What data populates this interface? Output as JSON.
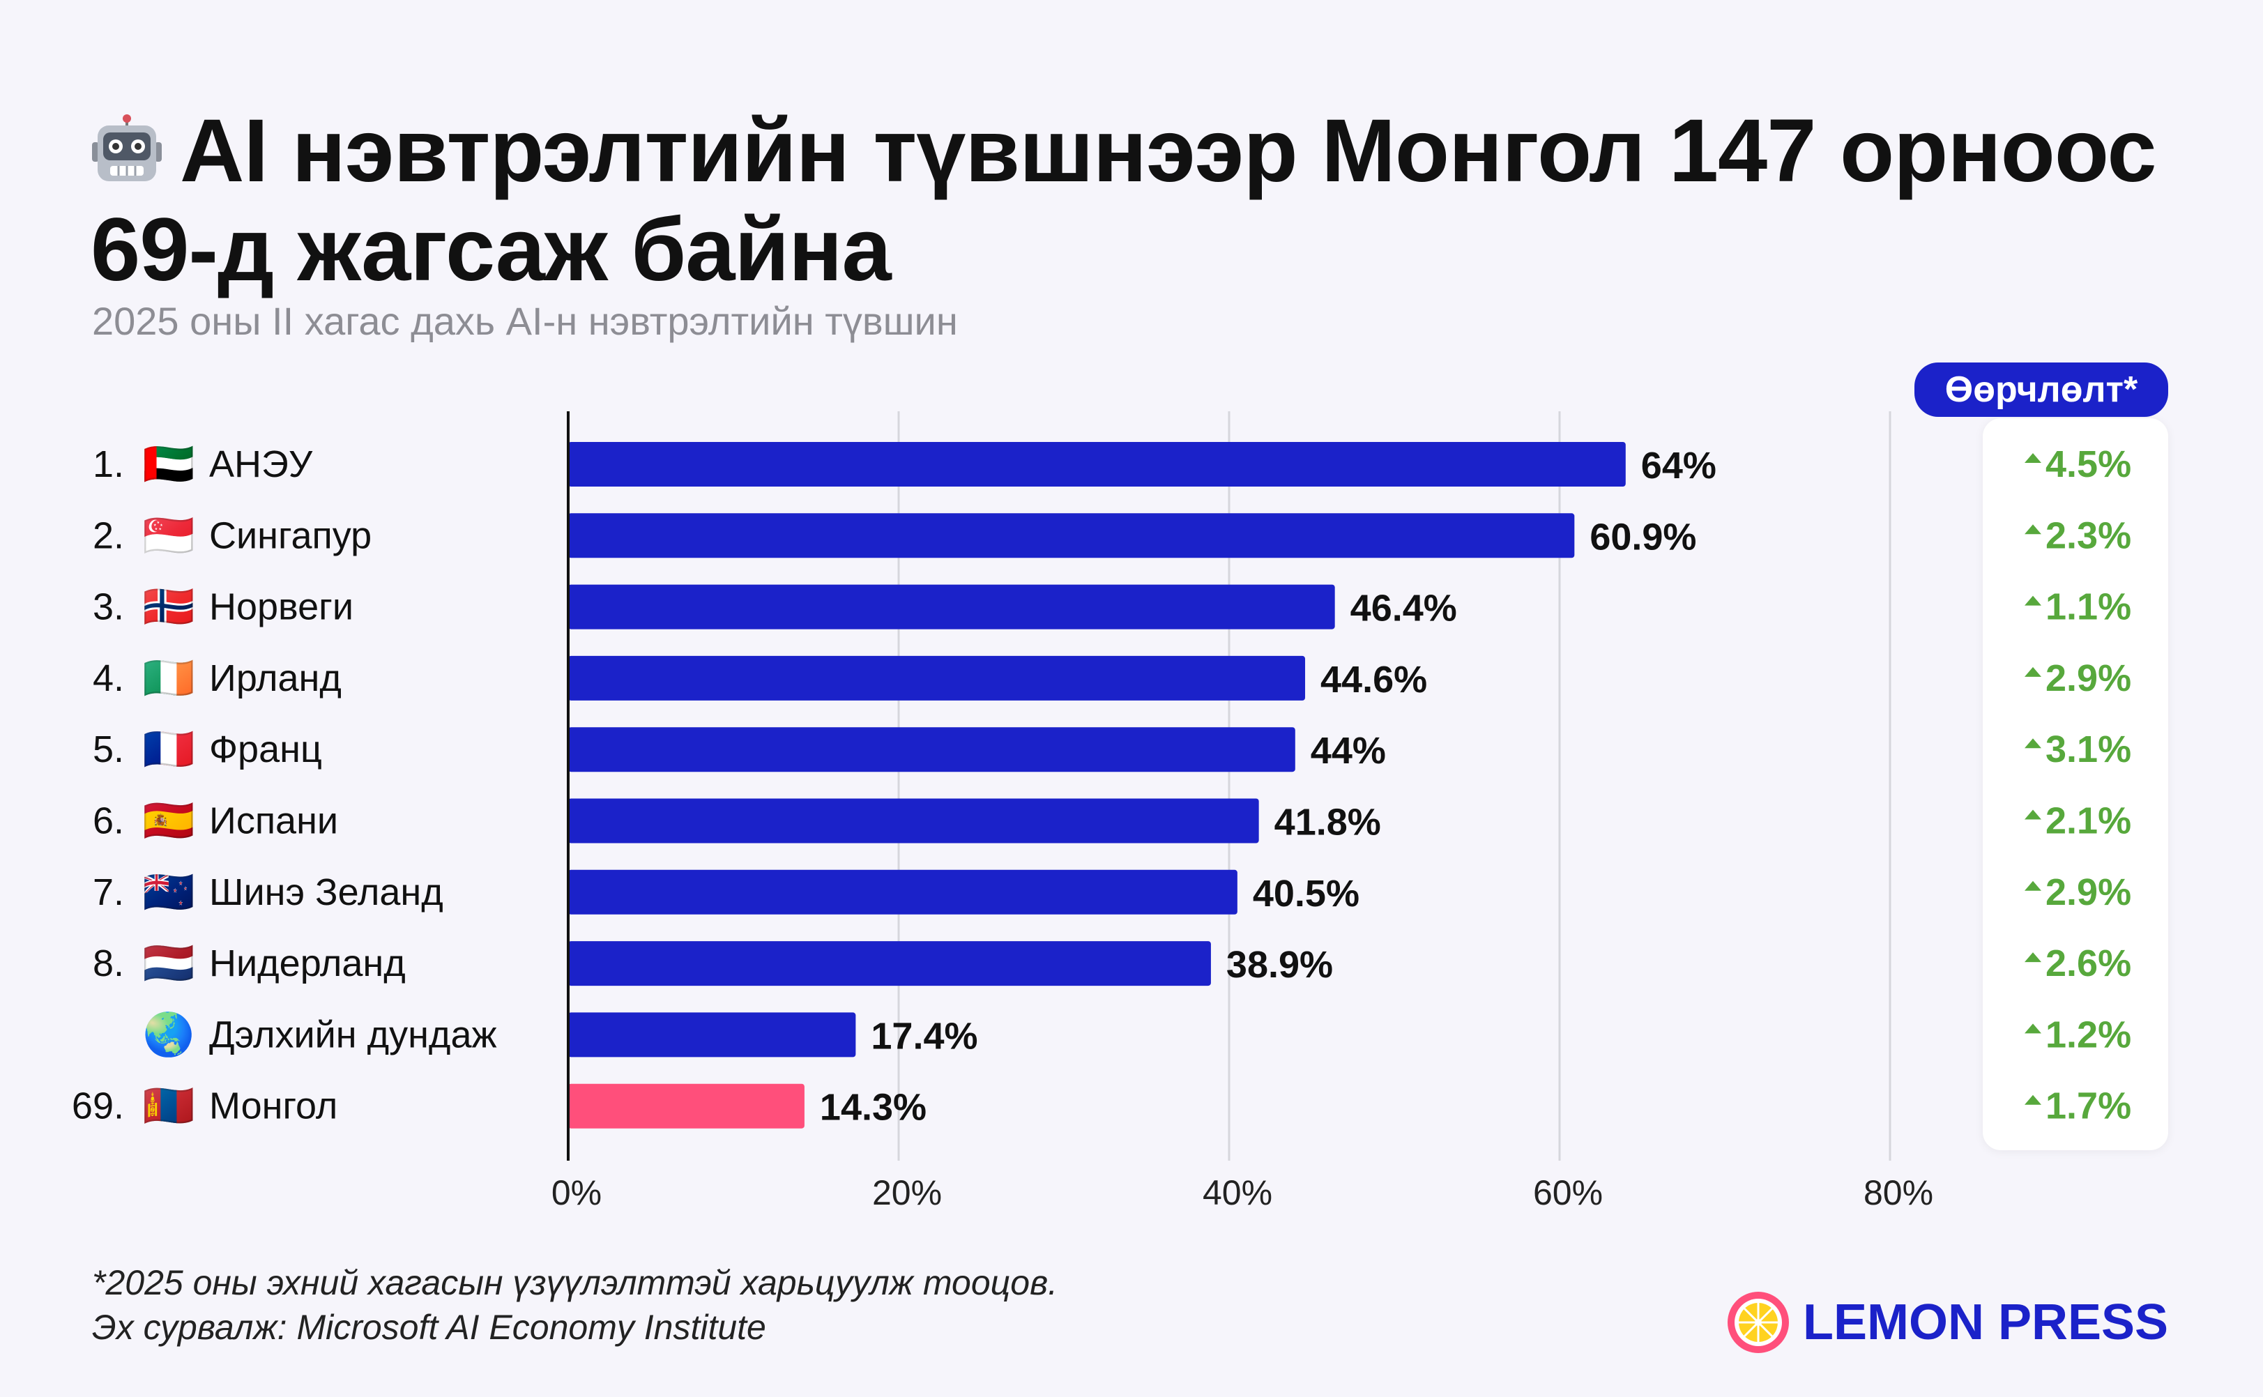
{
  "title": "AI нэвтрэлтийн түвшнээр Монгол 147 орноос 69-д жагсаж байна",
  "subtitle": "2025 оны II хагас дахь AI-н нэвтрэлтийн түвшин",
  "delta_header": "Өөрчлөлт*",
  "footnote": {
    "line1": "*2025 оны эхний хагасын үзүүлэлттэй харьцуулж тооцов.",
    "line2": "Эх сурвалж: Microsoft AI Economy Institute"
  },
  "logo_text": "LEMON PRESS",
  "colors": {
    "bar": "#1b22c9",
    "highlight": "#ff4f7b",
    "delta": "#57a83c",
    "grid": "#d6d6dc",
    "text": "#111111"
  },
  "chart_data": {
    "type": "bar",
    "orientation": "horizontal",
    "title": "AI нэвтрэлтийн түвшнээр Монгол 147 орноос 69-д жагсаж байна",
    "subtitle": "2025 оны II хагас дахь AI-н нэвтрэлтийн түвшин",
    "xlim": [
      0,
      80
    ],
    "x_ticks": [
      "0%",
      "20%",
      "40%",
      "60%",
      "80%"
    ],
    "x_tick_values": [
      0,
      20,
      40,
      60,
      80
    ],
    "grid": true,
    "rows": [
      {
        "rank": "1.",
        "flag": "🇦🇪",
        "country": "АНЭУ",
        "value": 64,
        "label": "64%",
        "delta": "4.5%",
        "highlight": false
      },
      {
        "rank": "2.",
        "flag": "🇸🇬",
        "country": "Сингапур",
        "value": 60.9,
        "label": "60.9%",
        "delta": "2.3%",
        "highlight": false
      },
      {
        "rank": "3.",
        "flag": "🇳🇴",
        "country": "Норвеги",
        "value": 46.4,
        "label": "46.4%",
        "delta": "1.1%",
        "highlight": false
      },
      {
        "rank": "4.",
        "flag": "🇮🇪",
        "country": "Ирланд",
        "value": 44.6,
        "label": "44.6%",
        "delta": "2.9%",
        "highlight": false
      },
      {
        "rank": "5.",
        "flag": "🇫🇷",
        "country": "Франц",
        "value": 44,
        "label": "44%",
        "delta": "3.1%",
        "highlight": false
      },
      {
        "rank": "6.",
        "flag": "🇪🇸",
        "country": "Испани",
        "value": 41.8,
        "label": "41.8%",
        "delta": "2.1%",
        "highlight": false
      },
      {
        "rank": "7.",
        "flag": "🇳🇿",
        "country": "Шинэ Зеланд",
        "value": 40.5,
        "label": "40.5%",
        "delta": "2.9%",
        "highlight": false
      },
      {
        "rank": "8.",
        "flag": "🇳🇱",
        "country": "Нидерланд",
        "value": 38.9,
        "label": "38.9%",
        "delta": "2.6%",
        "highlight": false
      },
      {
        "rank": "",
        "flag": "🌏",
        "country": "Дэлхийн дундаж",
        "value": 17.4,
        "label": "17.4%",
        "delta": "1.2%",
        "highlight": false
      },
      {
        "rank": "69.",
        "flag": "🇲🇳",
        "country": "Монгол",
        "value": 14.3,
        "label": "14.3%",
        "delta": "1.7%",
        "highlight": true
      }
    ]
  }
}
